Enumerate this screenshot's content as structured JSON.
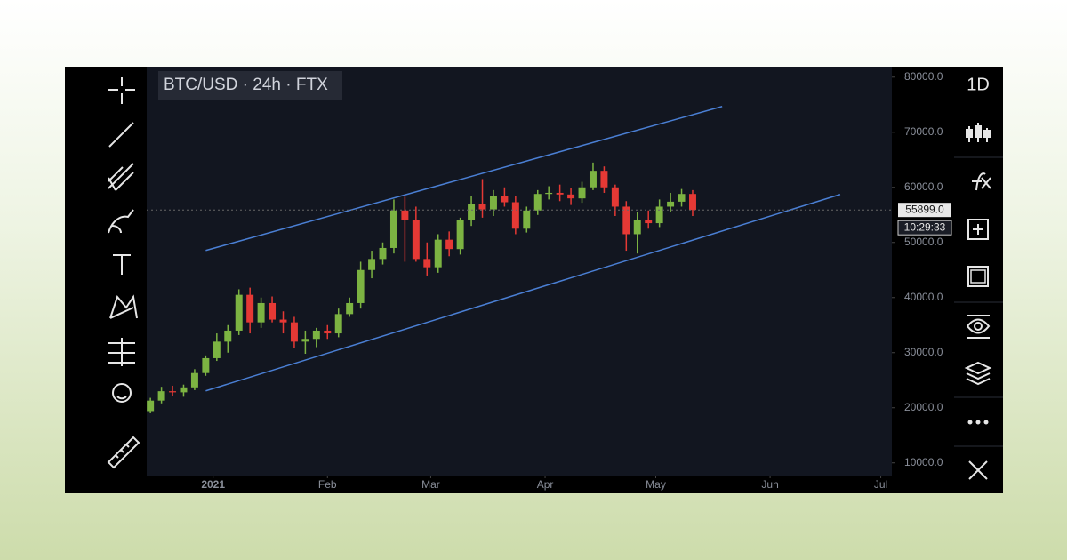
{
  "chart_data": {
    "type": "candlestick",
    "title": "BTC/USD · 24h · FTX",
    "interval": "1D",
    "x": [
      "2020-12-15",
      "2020-12-18",
      "2020-12-21",
      "2020-12-24",
      "2020-12-27",
      "2020-12-30",
      "2021-01-02",
      "2021-01-05",
      "2021-01-08",
      "2021-01-11",
      "2021-01-14",
      "2021-01-17",
      "2021-01-20",
      "2021-01-23",
      "2021-01-26",
      "2021-01-29",
      "2021-02-01",
      "2021-02-04",
      "2021-02-07",
      "2021-02-10",
      "2021-02-13",
      "2021-02-16",
      "2021-02-19",
      "2021-02-22",
      "2021-02-25",
      "2021-02-28",
      "2021-03-03",
      "2021-03-06",
      "2021-03-09",
      "2021-03-12",
      "2021-03-15",
      "2021-03-18",
      "2021-03-21",
      "2021-03-24",
      "2021-03-27",
      "2021-03-30",
      "2021-04-02",
      "2021-04-05",
      "2021-04-08",
      "2021-04-11",
      "2021-04-14",
      "2021-04-17",
      "2021-04-20",
      "2021-04-23",
      "2021-04-26",
      "2021-04-29",
      "2021-05-02",
      "2021-05-05",
      "2021-05-08",
      "2021-05-11"
    ],
    "opens": [
      19400,
      21300,
      23000,
      22800,
      23700,
      26300,
      29000,
      32000,
      34000,
      40500,
      35500,
      39000,
      36000,
      35500,
      32000,
      32500,
      34000,
      33500,
      37000,
      39000,
      45000,
      47000,
      49000,
      55800,
      54000,
      47000,
      45500,
      50500,
      48800,
      54000,
      57000,
      56000,
      58500,
      57300,
      52500,
      55800,
      58800,
      59000,
      58700,
      58000,
      60000,
      63000,
      60000,
      56500,
      51500,
      54000,
      53500,
      56500,
      57400,
      58800
    ],
    "highs": [
      21800,
      23800,
      24000,
      24200,
      27000,
      29500,
      33500,
      35000,
      41500,
      41800,
      40000,
      40200,
      37500,
      36500,
      34000,
      34500,
      35000,
      38000,
      40000,
      46500,
      48500,
      50000,
      57800,
      58300,
      56500,
      50000,
      51500,
      52000,
      54500,
      58500,
      61500,
      59500,
      60000,
      58500,
      56500,
      59500,
      60200,
      60500,
      59800,
      61000,
      64500,
      63800,
      60500,
      57500,
      55500,
      55800,
      57800,
      59000,
      59700,
      59500
    ],
    "lows": [
      19000,
      20800,
      22200,
      22000,
      23200,
      25800,
      28500,
      30000,
      33200,
      33500,
      34500,
      35500,
      33500,
      30800,
      29800,
      31000,
      32500,
      32800,
      36500,
      38000,
      43500,
      46000,
      48000,
      46500,
      46500,
      44000,
      44500,
      47500,
      47800,
      53000,
      54500,
      54800,
      56500,
      51500,
      51800,
      55000,
      57800,
      57500,
      56800,
      57200,
      59500,
      59000,
      54800,
      48500,
      48000,
      52500,
      52800,
      55500,
      56500,
      54800
    ],
    "closes": [
      21300,
      23000,
      22800,
      23700,
      26300,
      29000,
      32000,
      34000,
      40500,
      35500,
      39000,
      36000,
      35500,
      32000,
      32500,
      34000,
      33500,
      37000,
      39000,
      45000,
      47000,
      49000,
      55800,
      54000,
      47000,
      45500,
      50500,
      48800,
      54000,
      57000,
      56000,
      58500,
      57300,
      52500,
      55800,
      58800,
      59000,
      58700,
      58000,
      60000,
      63000,
      60000,
      56500,
      51500,
      54000,
      53500,
      56500,
      57400,
      58800,
      55899
    ],
    "up_color": "#7cb342",
    "down_color": "#e53935",
    "xlim": [
      "2020-12-14",
      "2021-07-04"
    ],
    "xticks": [
      {
        "value": "2021-01-01",
        "label": "2021"
      },
      {
        "value": "2021-02-01",
        "label": "Feb"
      },
      {
        "value": "2021-03-01",
        "label": "Mar"
      },
      {
        "value": "2021-04-01",
        "label": "Apr"
      },
      {
        "value": "2021-05-01",
        "label": "May"
      },
      {
        "value": "2021-06-01",
        "label": "Jun"
      },
      {
        "value": "2021-07-01",
        "label": "Jul"
      }
    ],
    "ylim": [
      7700,
      81900
    ],
    "yticks": [
      {
        "value": 80000,
        "label": "80000.0"
      },
      {
        "value": 70000,
        "label": "70000.0"
      },
      {
        "value": 60000,
        "label": "60000.0"
      },
      {
        "value": 50000,
        "label": "50000.0"
      },
      {
        "value": 40000,
        "label": "40000.0"
      },
      {
        "value": 30000,
        "label": "30000.0"
      },
      {
        "value": 20000,
        "label": "20000.0"
      },
      {
        "value": 10000,
        "label": "10000.0"
      }
    ],
    "last_price": {
      "value": 55899,
      "label": "55899.0"
    },
    "countdown": "10:29:33",
    "trendlines": [
      {
        "color": "#4a7fd4",
        "x": [
          "2020-12-30",
          "2021-05-19"
        ],
        "y": [
          48548,
          74677
        ]
      },
      {
        "color": "#4a7fd4",
        "x": [
          "2020-12-30",
          "2021-06-20"
        ],
        "y": [
          23065,
          58710
        ]
      }
    ]
  }
}
